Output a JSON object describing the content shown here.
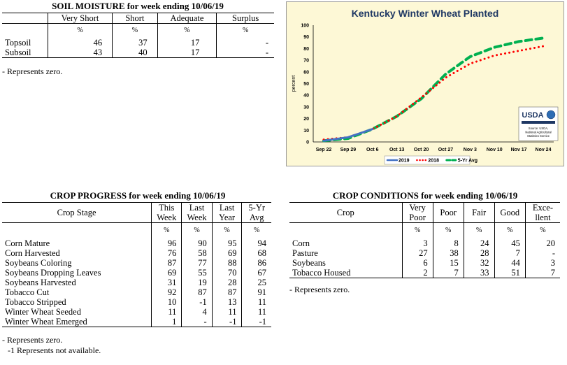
{
  "soil": {
    "title": "SOIL MOISTURE for week ending 10/06/19",
    "headers": [
      "Very Short",
      "Short",
      "Adequate",
      "Surplus"
    ],
    "pct": [
      "%",
      "%",
      "%",
      "%"
    ],
    "rows": [
      {
        "label": "Topsoil",
        "values": [
          "46",
          "37",
          "17",
          "-"
        ]
      },
      {
        "label": "Subsoil",
        "values": [
          "43",
          "40",
          "17",
          "-"
        ]
      }
    ],
    "note": "- Represents zero."
  },
  "progress": {
    "title": "CROP PROGRESS for week ending 10/06/19",
    "stage_header": "Crop Stage",
    "headers": [
      [
        "This",
        "Week"
      ],
      [
        "Last",
        "Week"
      ],
      [
        "Last",
        "Year"
      ],
      [
        "5-Yr",
        "Avg"
      ]
    ],
    "pct": [
      "%",
      "%",
      "%",
      "%"
    ],
    "rows": [
      {
        "label": "Corn Mature",
        "values": [
          "96",
          "90",
          "95",
          "94"
        ]
      },
      {
        "label": "Corn Harvested",
        "values": [
          "76",
          "58",
          "69",
          "68"
        ]
      },
      {
        "label": "Soybeans Coloring",
        "values": [
          "87",
          "77",
          "88",
          "86"
        ]
      },
      {
        "label": "Soybeans Dropping Leaves",
        "values": [
          "69",
          "55",
          "70",
          "67"
        ]
      },
      {
        "label": "Soybeans Harvested",
        "values": [
          "31",
          "19",
          "28",
          "25"
        ]
      },
      {
        "label": "Tobacco Cut",
        "values": [
          "92",
          "87",
          "87",
          "91"
        ]
      },
      {
        "label": "Tobacco Stripped",
        "values": [
          "10",
          "-1",
          "13",
          "11"
        ]
      },
      {
        "label": "Winter Wheat Seeded",
        "values": [
          "11",
          "4",
          "11",
          "11"
        ]
      },
      {
        "label": "Winter Wheat Emerged",
        "values": [
          "1",
          "-",
          "-1",
          "-1"
        ]
      }
    ],
    "note1": "- Represents zero.",
    "note2": "-1 Represents not available."
  },
  "conditions": {
    "title": "CROP CONDITIONS for week ending 10/06/19",
    "crop_header": "Crop",
    "headers": [
      [
        "Very",
        "Poor"
      ],
      [
        "Poor",
        ""
      ],
      [
        "Fair",
        ""
      ],
      [
        "Good",
        ""
      ],
      [
        "Exce-",
        "llent"
      ]
    ],
    "pct": [
      "%",
      "%",
      "%",
      "%",
      "%"
    ],
    "rows": [
      {
        "label": "Corn",
        "values": [
          "3",
          "8",
          "24",
          "45",
          "20"
        ]
      },
      {
        "label": "Pasture",
        "values": [
          "27",
          "38",
          "28",
          "7",
          "-"
        ]
      },
      {
        "label": "Soybeans",
        "values": [
          "6",
          "15",
          "32",
          "44",
          "3"
        ]
      },
      {
        "label": "Tobacco Housed",
        "values": [
          "2",
          "7",
          "33",
          "51",
          "7"
        ]
      }
    ],
    "note": "- Represents zero."
  },
  "chart_data": {
    "type": "line",
    "title": "Kentucky Winter Wheat Planted",
    "ylabel": "percent",
    "xlabel": "",
    "ylim": [
      0,
      100
    ],
    "yticks": [
      "0",
      "10",
      "20",
      "30",
      "40",
      "50",
      "60",
      "70",
      "80",
      "90",
      "100"
    ],
    "categories": [
      "Sep 22",
      "Sep 29",
      "Oct 6",
      "Oct 13",
      "Oct 20",
      "Oct 27",
      "Nov 3",
      "Nov 10",
      "Nov 17",
      "Nov 24"
    ],
    "series": [
      {
        "name": "2019",
        "color": "#4472c4",
        "style": "solid",
        "values": [
          1,
          4,
          11,
          null,
          null,
          null,
          null,
          null,
          null,
          null
        ]
      },
      {
        "name": "2018",
        "color": "#ff0000",
        "style": "dotted",
        "values": [
          2,
          4,
          11,
          22,
          38,
          55,
          67,
          74,
          78,
          82
        ]
      },
      {
        "name": "5-Yr Avg",
        "color": "#00b050",
        "style": "dashed",
        "values": [
          1,
          3,
          11,
          22,
          37,
          58,
          73,
          81,
          86,
          89
        ]
      }
    ],
    "grid": false,
    "legend": "bottom",
    "logo": {
      "text": "USDA",
      "caption_line1": "Source: USDA,",
      "caption_line2": "National Agricultural",
      "caption_line3": "Statistics Service"
    }
  }
}
